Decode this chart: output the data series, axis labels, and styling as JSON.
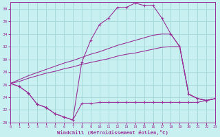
{
  "xlabel": "Windchill (Refroidissement éolien,°C)",
  "background_color": "#c8f0f0",
  "grid_color": "#a8dada",
  "line_color": "#993399",
  "xlim": [
    0,
    23
  ],
  "ylim": [
    20,
    39
  ],
  "yticks": [
    20,
    22,
    24,
    26,
    28,
    30,
    32,
    34,
    36,
    38
  ],
  "xticks": [
    0,
    1,
    2,
    3,
    4,
    5,
    6,
    7,
    8,
    9,
    10,
    11,
    12,
    13,
    14,
    15,
    16,
    17,
    18,
    19,
    20,
    21,
    22,
    23
  ],
  "hours": [
    0,
    1,
    2,
    3,
    4,
    5,
    6,
    7,
    8,
    9,
    10,
    11,
    12,
    13,
    14,
    15,
    16,
    17,
    18,
    19,
    20,
    21,
    22,
    23
  ],
  "windchill_line": [
    26.2,
    25.7,
    24.7,
    22.9,
    22.4,
    21.4,
    20.9,
    20.4,
    29.5,
    33.0,
    35.5,
    36.5,
    38.2,
    38.2,
    38.9,
    38.5,
    38.5,
    36.5,
    34.0,
    32.0,
    24.5,
    23.8,
    23.5,
    23.8
  ],
  "temp_line": [
    26.2,
    25.7,
    24.7,
    22.9,
    22.4,
    21.4,
    20.9,
    20.4,
    23.0,
    23.0,
    23.2,
    23.2,
    23.2,
    23.2,
    23.2,
    23.2,
    23.2,
    23.2,
    23.2,
    23.2,
    23.2,
    23.2,
    23.5,
    23.8
  ],
  "linear_line1": [
    26.2,
    26.8,
    27.4,
    27.9,
    28.4,
    28.9,
    29.4,
    29.8,
    30.3,
    30.8,
    31.2,
    31.7,
    32.2,
    32.6,
    33.0,
    33.4,
    33.8,
    34.0,
    34.0,
    32.0,
    24.5,
    23.8,
    23.5,
    23.8
  ],
  "linear_line2": [
    26.2,
    26.5,
    27.0,
    27.4,
    27.8,
    28.1,
    28.5,
    28.8,
    29.2,
    29.5,
    29.8,
    30.1,
    30.5,
    30.8,
    31.0,
    31.3,
    31.6,
    31.9,
    32.0,
    32.0,
    24.5,
    23.8,
    23.5,
    23.8
  ]
}
